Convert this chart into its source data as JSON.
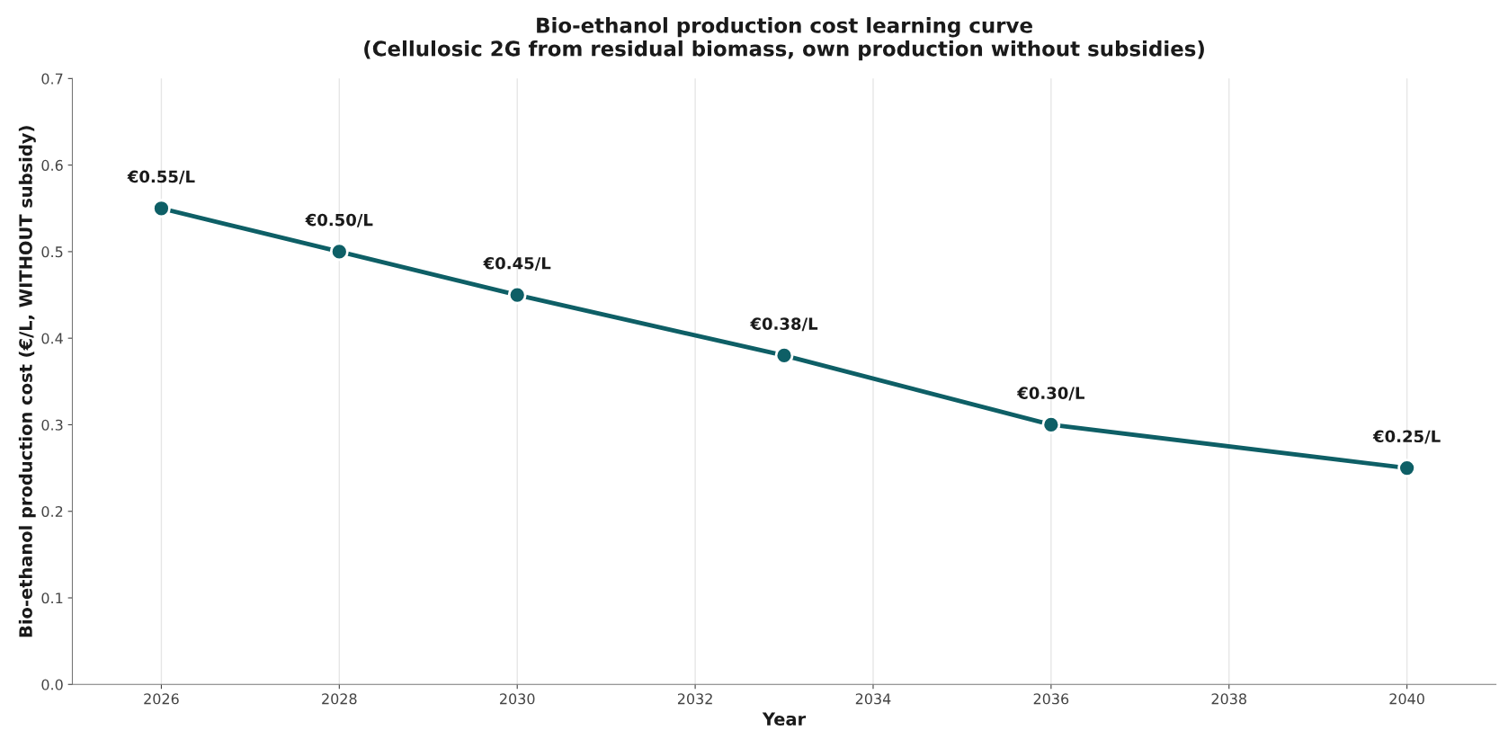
{
  "chart_data": {
    "type": "line",
    "title": "Bio-ethanol production cost learning curve\n(Cellulosic 2G from residual biomass, own production without subsidies)",
    "xlabel": "Year",
    "ylabel": "Bio-ethanol production cost (€/L, WITHOUT subsidy)",
    "x": [
      2026,
      2028,
      2030,
      2033,
      2036,
      2040
    ],
    "series": [
      {
        "color": "#0e5f66",
        "values": [
          0.55,
          0.5,
          0.45,
          0.38,
          0.3,
          0.25
        ],
        "value_labels": [
          "€0.55/L",
          "€0.50/L",
          "€0.45/L",
          "€0.38/L",
          "€0.30/L",
          "€0.25/L"
        ]
      }
    ],
    "xlim": [
      2025,
      2041
    ],
    "xticks": [
      2026,
      2028,
      2030,
      2032,
      2034,
      2036,
      2038,
      2040
    ],
    "ylim": [
      0,
      0.7
    ],
    "yticks": [
      {
        "value": 0,
        "label": "0.0"
      },
      0.1,
      0.2,
      0.3,
      0.4,
      0.5,
      0.6,
      0.7
    ],
    "grid": "x",
    "legend": false,
    "marker": "circle",
    "line_style": "solid"
  }
}
